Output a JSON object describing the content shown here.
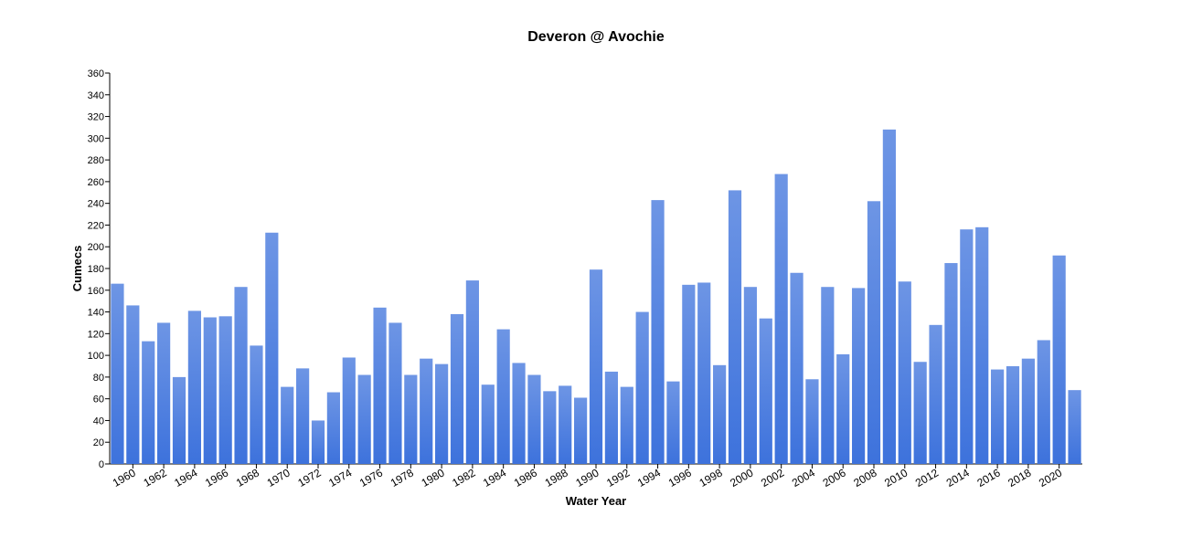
{
  "chart_data": {
    "type": "bar",
    "title": "Deveron @ Avochie",
    "y_label": "Cumecs",
    "x_label": "Water Year",
    "categories": [
      null,
      "1960",
      null,
      "1962",
      null,
      "1964",
      null,
      "1966",
      null,
      "1968",
      null,
      "1970",
      null,
      "1972",
      null,
      "1974",
      null,
      "1976",
      null,
      "1978",
      null,
      "1980",
      null,
      "1982",
      null,
      "1984",
      null,
      "1986",
      null,
      "1988",
      null,
      "1990",
      null,
      "1992",
      null,
      "1994",
      null,
      "1996",
      null,
      "1998",
      null,
      "2000",
      null,
      "2002",
      null,
      "2004",
      null,
      "2006",
      null,
      "2008",
      null,
      "2010",
      null,
      "2012",
      null,
      "2014",
      null,
      "2016",
      null,
      "2018",
      null,
      "2020",
      null
    ],
    "values": [
      166,
      146,
      113,
      130,
      80,
      141,
      135,
      136,
      163,
      109,
      213,
      71,
      88,
      40,
      66,
      98,
      82,
      144,
      130,
      82,
      97,
      92,
      138,
      169,
      73,
      124,
      93,
      82,
      67,
      72,
      61,
      179,
      85,
      71,
      140,
      243,
      76,
      165,
      167,
      91,
      252,
      163,
      134,
      267,
      176,
      78,
      163,
      101,
      162,
      242,
      308,
      168,
      94,
      128,
      185,
      216,
      218,
      87,
      90,
      97,
      114,
      192,
      68
    ],
    "color": "#3d72dc",
    "ylim": [
      0,
      360
    ],
    "yticks": [
      0,
      20,
      40,
      60,
      80,
      100,
      120,
      140,
      160,
      180,
      200,
      220,
      240,
      260,
      280,
      300,
      320,
      340,
      360
    ],
    "grid": false
  }
}
